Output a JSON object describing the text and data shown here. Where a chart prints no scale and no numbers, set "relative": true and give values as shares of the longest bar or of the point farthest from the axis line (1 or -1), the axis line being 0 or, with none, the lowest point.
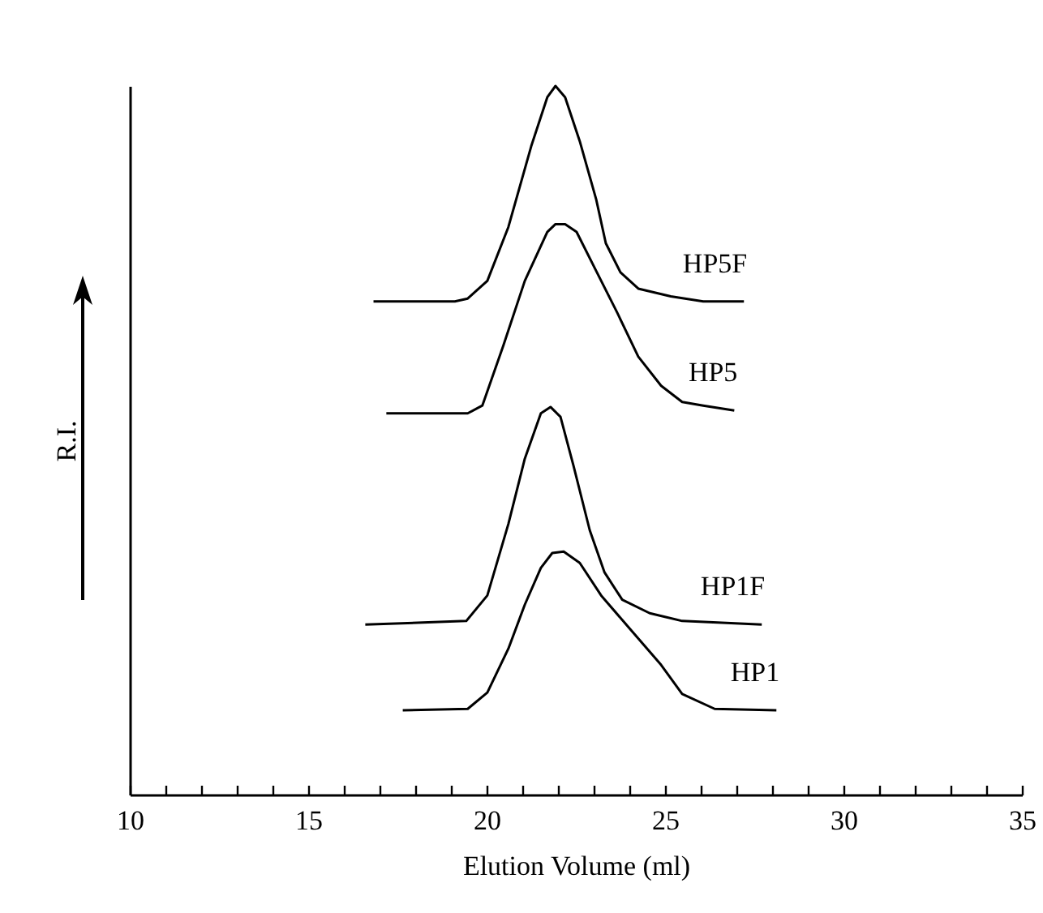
{
  "chart_data": {
    "type": "line",
    "relative": true,
    "xlabel": "Elution Volume (ml)",
    "ylabel": "R.I.",
    "xlim": [
      10,
      35
    ],
    "xticks": [
      10,
      {
        "value": 11,
        "label": null
      },
      {
        "value": 12,
        "label": null
      },
      {
        "value": 13,
        "label": null
      },
      {
        "value": 14,
        "label": null
      },
      15,
      {
        "value": 16,
        "label": null
      },
      {
        "value": 17,
        "label": null
      },
      {
        "value": 18,
        "label": null
      },
      {
        "value": 19,
        "label": null
      },
      20,
      {
        "value": 21,
        "label": null
      },
      {
        "value": 22,
        "label": null
      },
      {
        "value": 23,
        "label": null
      },
      {
        "value": 24,
        "label": null
      },
      25,
      {
        "value": 26,
        "label": null
      },
      {
        "value": 27,
        "label": null
      },
      {
        "value": 28,
        "label": null
      },
      {
        "value": 29,
        "label": null
      },
      30,
      {
        "value": 31,
        "label": null
      },
      {
        "value": 32,
        "label": null
      },
      {
        "value": 33,
        "label": null
      },
      {
        "value": 34,
        "label": null
      },
      35
    ],
    "grid": false,
    "legend": false,
    "marker": "none",
    "line_style": "solid",
    "series": [
      {
        "name": "HP5F",
        "color": "#000000",
        "x": [
          16.83,
          19.11,
          19.47,
          20.02,
          20.61,
          21.25,
          21.7,
          21.93,
          22.2,
          22.61,
          23.07,
          23.34,
          23.75,
          24.25,
          25.16,
          26.07,
          27.21
        ],
        "values": [
          0.696,
          0.696,
          0.7,
          0.725,
          0.801,
          0.915,
          0.984,
          1.0,
          0.984,
          0.922,
          0.84,
          0.778,
          0.737,
          0.714,
          0.703,
          0.696,
          0.696
        ]
      },
      {
        "name": "HP5",
        "color": "#000000",
        "x": [
          17.19,
          19.47,
          19.88,
          20.47,
          21.07,
          21.7,
          21.93,
          22.2,
          22.52,
          23.07,
          23.66,
          24.25,
          24.89,
          25.48,
          26.07,
          26.94
        ],
        "values": [
          0.538,
          0.538,
          0.549,
          0.634,
          0.725,
          0.794,
          0.805,
          0.805,
          0.794,
          0.739,
          0.68,
          0.618,
          0.577,
          0.554,
          0.549,
          0.542
        ]
      },
      {
        "name": "HP1F",
        "color": "#000000",
        "x": [
          16.6,
          19.43,
          20.02,
          20.61,
          21.07,
          21.52,
          21.79,
          22.07,
          22.43,
          22.89,
          23.3,
          23.8,
          24.57,
          25.48,
          27.71
        ],
        "values": [
          0.24,
          0.245,
          0.281,
          0.382,
          0.474,
          0.538,
          0.547,
          0.533,
          0.465,
          0.373,
          0.314,
          0.275,
          0.256,
          0.245,
          0.24
        ]
      },
      {
        "name": "HP1",
        "color": "#000000",
        "x": [
          17.65,
          19.47,
          20.02,
          20.61,
          21.07,
          21.52,
          21.84,
          22.16,
          22.61,
          23.21,
          23.98,
          24.89,
          25.48,
          26.39,
          28.12
        ],
        "values": [
          0.119,
          0.121,
          0.144,
          0.206,
          0.268,
          0.32,
          0.341,
          0.343,
          0.327,
          0.281,
          0.236,
          0.183,
          0.142,
          0.121,
          0.119
        ]
      }
    ]
  }
}
